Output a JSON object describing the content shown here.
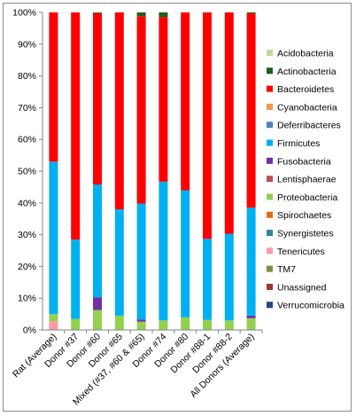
{
  "chart_data": {
    "type": "bar",
    "stacked": "percent",
    "categories": [
      "Rat (Average)",
      "Donor #37",
      "Donor #60",
      "Donor #65",
      "Mixed (#37, #60 & #65)",
      "Donor #74",
      "Donor #80",
      "Donor #88-1",
      "Donor #88-2",
      "All Donors (Average)"
    ],
    "ylim": [
      0,
      100
    ],
    "yticks": [
      "0%",
      "10%",
      "20%",
      "30%",
      "40%",
      "50%",
      "60%",
      "70%",
      "80%",
      "90%",
      "100%"
    ],
    "grid": false,
    "legend_position": "right",
    "series": [
      {
        "name": "Acidobacteria",
        "color": "#c4d79b",
        "values": [
          0,
          0,
          0,
          0,
          0,
          0,
          0,
          0,
          0,
          0
        ]
      },
      {
        "name": "Actinobacteria",
        "color": "#1e5e1e",
        "values": [
          0,
          0,
          0.2,
          0,
          1.2,
          1.5,
          0,
          0,
          0,
          0.3
        ]
      },
      {
        "name": "Bacteroidetes",
        "color": "#ff0000",
        "values": [
          47,
          71.5,
          54,
          62,
          59,
          51.8,
          56,
          71.3,
          69.7,
          61.2
        ]
      },
      {
        "name": "Cyanobacteria",
        "color": "#f79646",
        "values": [
          0,
          0,
          0,
          0,
          0,
          0,
          0,
          0,
          0,
          0
        ]
      },
      {
        "name": "Deferribacteres",
        "color": "#4f81bd",
        "values": [
          0,
          0,
          0,
          0,
          0,
          0,
          0,
          0,
          0,
          0
        ]
      },
      {
        "name": "Firmicutes",
        "color": "#00b0f0",
        "values": [
          48,
          25,
          35.5,
          33.5,
          36.5,
          43.7,
          40,
          25.5,
          27.3,
          34
        ]
      },
      {
        "name": "Fusobacteria",
        "color": "#7030a0",
        "values": [
          0,
          0,
          4,
          0,
          0.7,
          0,
          0,
          0,
          0,
          0.8
        ]
      },
      {
        "name": "Lentisphaerae",
        "color": "#c0504d",
        "values": [
          0,
          0,
          0,
          0,
          0,
          0,
          0,
          0,
          0,
          0
        ]
      },
      {
        "name": "Proteobacteria",
        "color": "#92d050",
        "values": [
          2.3,
          3.5,
          6.3,
          4.5,
          2.6,
          3,
          4,
          3.2,
          3,
          3.7
        ]
      },
      {
        "name": "Spirochaetes",
        "color": "#e36c09",
        "values": [
          0,
          0,
          0,
          0,
          0,
          0,
          0,
          0,
          0,
          0
        ]
      },
      {
        "name": "Synergistetes",
        "color": "#31859c",
        "values": [
          0,
          0,
          0,
          0,
          0,
          0,
          0,
          0,
          0,
          0
        ]
      },
      {
        "name": "Tenericutes",
        "color": "#ff99a8",
        "values": [
          2.7,
          0,
          0,
          0,
          0,
          0,
          0,
          0,
          0,
          0
        ]
      },
      {
        "name": "TM7",
        "color": "#76923c",
        "values": [
          0,
          0,
          0,
          0,
          0,
          0,
          0,
          0,
          0,
          0
        ]
      },
      {
        "name": "Unassigned",
        "color": "#953735",
        "values": [
          0,
          0,
          0,
          0,
          0,
          0,
          0,
          0,
          0,
          0
        ]
      },
      {
        "name": "Verrucomicrobia",
        "color": "#1f497d",
        "values": [
          0,
          0,
          0,
          0,
          0,
          0,
          0,
          0,
          0,
          0
        ]
      }
    ]
  }
}
